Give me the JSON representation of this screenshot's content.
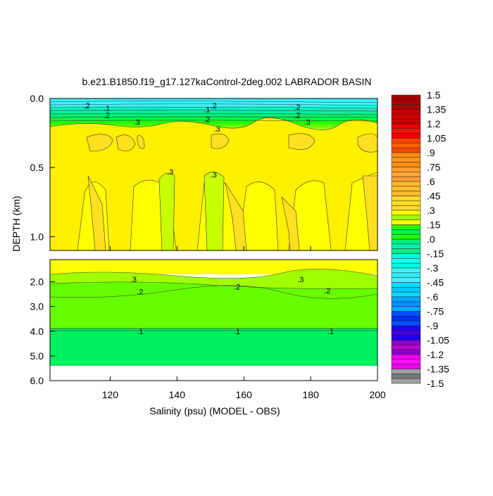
{
  "chart_data": {
    "type": "heatmap",
    "subtype": "filled-contour",
    "title": "b.e21.B1850.f19_g17.127kaControl-2deg.002 LABRADOR BASIN",
    "xlabel": "Salinity (psu) (MODEL - OBS)",
    "ylabel": "DEPTH (km)",
    "xlim": [
      102,
      200
    ],
    "xticks": [
      "120",
      "140",
      "160",
      "180",
      "200"
    ],
    "xtick_values": [
      120,
      140,
      160,
      180,
      200
    ],
    "upper_panel": {
      "ylim": [
        0.0,
        1.1
      ],
      "yticks": [
        "0.0",
        "0.5",
        "1.0"
      ],
      "ytick_values": [
        0.0,
        0.5,
        1.0
      ]
    },
    "lower_panel": {
      "ylim": [
        1.1,
        6.0
      ],
      "yticks": [
        "2.0",
        "3.0",
        "4.0",
        "5.0",
        "6.0"
      ],
      "ytick_values": [
        2.0,
        3.0,
        4.0,
        5.0,
        6.0
      ],
      "no_data_below": 5.4
    },
    "colorbar": {
      "labels": [
        "1.5",
        "1.35",
        "1.2",
        "1.05",
        ".9",
        ".75",
        ".6",
        ".45",
        ".3",
        ".15",
        ".0",
        "-.15",
        "-.3",
        "-.45",
        "-.6",
        "-.75",
        "-.9",
        "-1.05",
        "-1.2",
        "-1.35",
        "-1.5"
      ],
      "range": [
        -1.5,
        1.5
      ],
      "interval_colors": [
        "#a80000",
        "#c80000",
        "#ee0000",
        "#ff4400",
        "#ff8c10",
        "#ff9e30",
        "#ffb830",
        "#ffd82a",
        "#ffff00",
        "#22ff00",
        "#00ee80",
        "#00ffe0",
        "#40f4ff",
        "#10d8ff",
        "#00a8ff",
        "#0050ff",
        "#2000f0",
        "#8a00d0",
        "#f000f0",
        "#a0a0a0"
      ],
      "interval_colors_2": [
        "#b00000",
        "#d00000",
        "#ff1000",
        "#ff6000",
        "#ff9618",
        "#ffa838",
        "#ffc030",
        "#ffe020",
        "#a0ff00",
        "#00f060",
        "#00f0b0",
        "#20ffee",
        "#30ecff",
        "#00c8ff",
        "#0090ff",
        "#0030ff",
        "#4400e0",
        "#c000d0",
        "#ff10f8",
        "#787878"
      ]
    },
    "contour_labels": [
      {
        "text": ".2",
        "x": 112,
        "depth": 0.05
      },
      {
        "text": ".1",
        "x": 118,
        "depth": 0.07
      },
      {
        "text": ".2",
        "x": 118,
        "depth": 0.12
      },
      {
        "text": ".3",
        "x": 127,
        "depth": 0.17
      },
      {
        "text": ".2",
        "x": 150,
        "depth": 0.05
      },
      {
        "text": ".1",
        "x": 148,
        "depth": 0.08
      },
      {
        "text": ".2",
        "x": 148,
        "depth": 0.15
      },
      {
        "text": ".3",
        "x": 151,
        "depth": 0.22
      },
      {
        "text": ".2",
        "x": 175,
        "depth": 0.06
      },
      {
        "text": ".2",
        "x": 175,
        "depth": 0.12
      },
      {
        "text": ".3",
        "x": 178,
        "depth": 0.17
      },
      {
        "text": ".3",
        "x": 137,
        "depth": 0.53
      },
      {
        "text": ".3",
        "x": 150,
        "depth": 0.55
      },
      {
        "text": ".3",
        "x": 126,
        "depth": 1.9
      },
      {
        "text": ".3",
        "x": 176,
        "depth": 1.9
      },
      {
        "text": ".2",
        "x": 128,
        "depth": 2.4
      },
      {
        "text": ".2",
        "x": 157,
        "depth": 2.2
      },
      {
        "text": ".2",
        "x": 184,
        "depth": 2.35
      },
      {
        "text": ".1",
        "x": 128,
        "depth": 4.0
      },
      {
        "text": ".1",
        "x": 157,
        "depth": 4.0
      },
      {
        "text": ".1",
        "x": 185,
        "depth": 4.0
      }
    ]
  }
}
